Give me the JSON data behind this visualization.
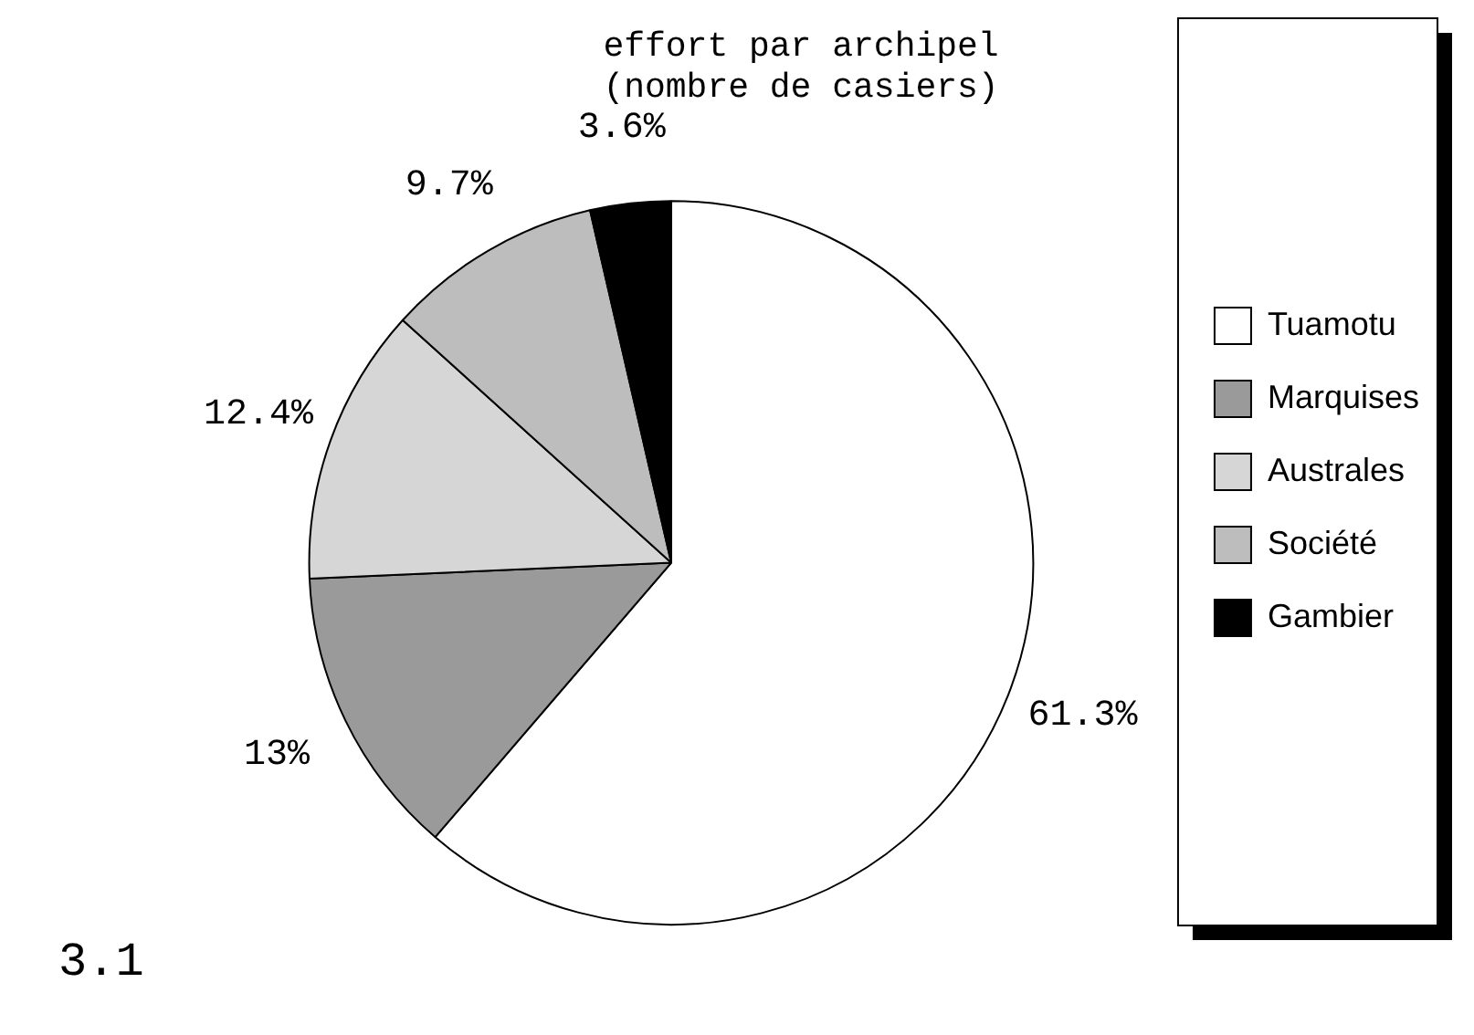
{
  "chart_data": {
    "type": "pie",
    "title": "effort par archipel",
    "subtitle": "(nombre de casiers)",
    "categories": [
      "Tuamotu",
      "Marquises",
      "Australes",
      "Société",
      "Gambier"
    ],
    "values": [
      61.3,
      13,
      12.4,
      9.7,
      3.6
    ],
    "colors": [
      "#ffffff",
      "#9a9a9a",
      "#d6d6d6",
      "#bdbdbd",
      "#000000"
    ],
    "value_labels": [
      "61.3%",
      "13%",
      "12.4%",
      "9.7%",
      "3.6%"
    ],
    "legend": "right",
    "annotations": [
      "3.1"
    ]
  }
}
